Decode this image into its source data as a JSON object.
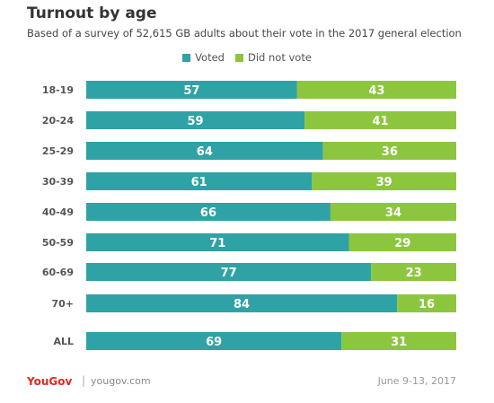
{
  "chart_data": {
    "type": "bar",
    "orientation": "horizontal",
    "stacked": true,
    "title": "Turnout by age",
    "subtitle": "Based of a survey of 52,615 GB adults about their vote in the 2017 general election",
    "categories": [
      "18-19",
      "20-24",
      "25-29",
      "30-39",
      "40-49",
      "50-59",
      "60-69",
      "70+",
      "ALL"
    ],
    "series": [
      {
        "name": "Voted",
        "color": "#2fa2a6",
        "values": [
          57,
          59,
          64,
          61,
          66,
          71,
          77,
          84,
          69
        ]
      },
      {
        "name": "Did not vote",
        "color": "#8cc63f",
        "values": [
          43,
          41,
          36,
          39,
          34,
          29,
          23,
          16,
          31
        ]
      }
    ],
    "xlim": [
      0,
      100
    ],
    "legend_position": "top-center",
    "grid": false
  },
  "footer": {
    "brand": "YouGov",
    "separator": "|",
    "site": "yougov.com",
    "date": "June 9-13, 2017"
  }
}
